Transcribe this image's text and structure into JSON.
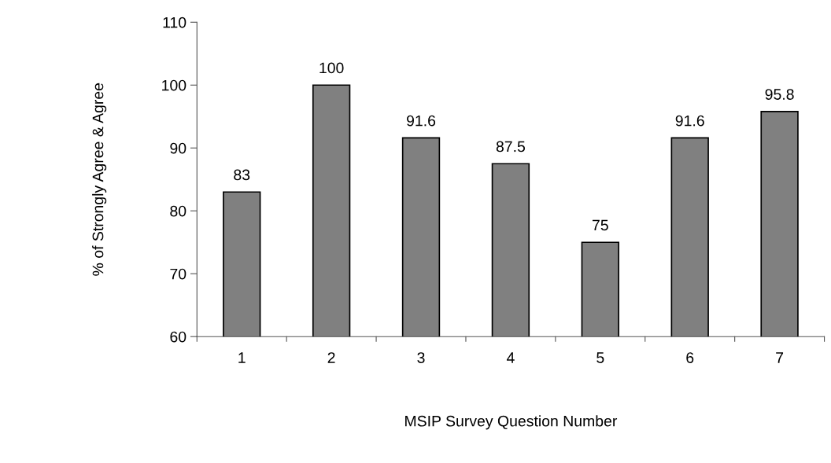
{
  "chart_data": {
    "type": "bar",
    "xlabel": "MSIP Survey Question Number",
    "ylabel": "% of Strongly Agree & Agree",
    "categories": [
      "1",
      "2",
      "3",
      "4",
      "5",
      "6",
      "7"
    ],
    "values": [
      83,
      100,
      91.6,
      87.5,
      75,
      91.6,
      95.8
    ],
    "color": "#808080",
    "ylim": [
      60,
      110
    ],
    "yticks": [
      60,
      70,
      80,
      90,
      100,
      110
    ],
    "data_labels": true,
    "grid": false,
    "legend": false
  }
}
